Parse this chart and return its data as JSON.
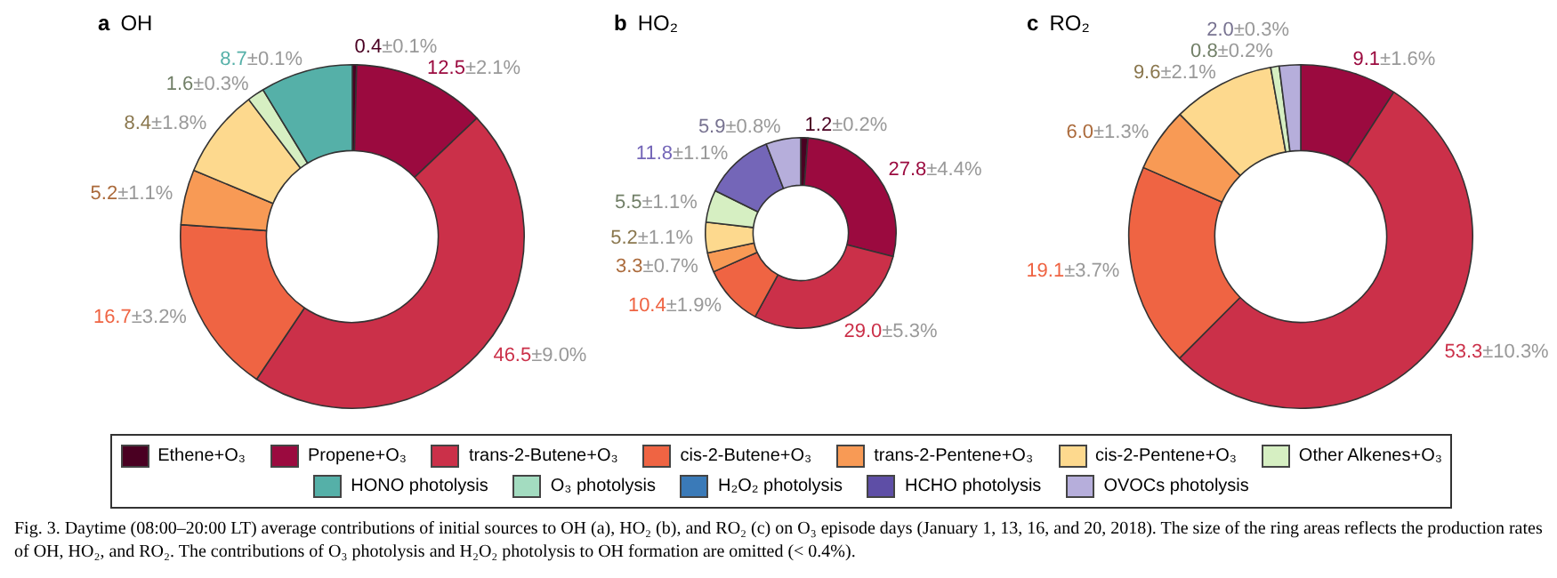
{
  "chart_data": [
    {
      "type": "donut",
      "title": "a OH",
      "legend": "bottom",
      "categories": [
        "Ethene+O₃",
        "Propene+O₃",
        "trans-2-Butene+O₃",
        "cis-2-Butene+O₃",
        "trans-2-Pentene+O₃",
        "cis-2-Pentene+O₃",
        "Other Alkenes+O₃",
        "HONO photolysis",
        "O₃ photolysis",
        "H₂O₂ photolysis",
        "HCHO photolysis",
        "OVOCs photolysis"
      ],
      "values": [
        0.4,
        12.5,
        46.5,
        16.7,
        5.2,
        8.4,
        1.6,
        8.7,
        null,
        null,
        null,
        null
      ],
      "value_labels": [
        "0.4±0.1%",
        "12.5±2.1%",
        "46.5±9.0%",
        "16.7±3.2%",
        "5.2±1.1%",
        "8.4±1.8%",
        "1.6±0.3%",
        "8.7±0.1%",
        null,
        null,
        null,
        null
      ],
      "colors": [
        "#4a0022",
        "#9b0a3f",
        "#cb3049",
        "#ef6443",
        "#f89a55",
        "#fdd98e",
        "#d6efc2",
        "#55b0a8",
        "#a3dcc0",
        "#3a7ab8",
        "#5e4ea6",
        "#b6aedb"
      ],
      "annotations": [
        "Fig. 3. Daytime (08:00–20:00 LT) average contributions of initial sources to OH (a), HO₂ (b), and RO₂ (c) on O₃ episode days (January 1, 13, 16, and 20, 2018). The size of the ring areas reflects the production rates of OH, HO₂, and RO₂. The contributions of O₃ photolysis and H₂O₂ photolysis to OH formation are omitted (< 0.4%)."
      ]
    },
    {
      "type": "donut",
      "title": "b HO₂",
      "categories": [
        null,
        null,
        null,
        null,
        null,
        null,
        null,
        null,
        null,
        null,
        null,
        null
      ],
      "values": [
        1.2,
        27.8,
        29.0,
        10.4,
        3.3,
        5.2,
        5.5,
        null,
        null,
        null,
        11.8,
        5.9
      ],
      "value_labels": [
        "1.2±0.2%",
        "27.8±4.4%",
        "29.0±5.3%",
        "10.4±1.9%",
        "3.3±0.7%",
        "5.2±1.1%",
        "5.5±1.1%",
        null,
        null,
        null,
        "11.8±1.1%",
        "5.9±0.8%"
      ],
      "colors": [
        "#4a0022",
        "#9b0a3f",
        "#cb3049",
        "#ef6443",
        "#f89a55",
        "#fdd98e",
        "#d6efc2",
        "#55b0a8",
        "#a3dcc0",
        "#3a7ab8",
        "#7466b8",
        "#b6aedb"
      ]
    },
    {
      "type": "donut",
      "title": "c RO₂",
      "categories": [
        null,
        null,
        null,
        null,
        null,
        null,
        null,
        null,
        null,
        null,
        null,
        null
      ],
      "values": [
        null,
        9.1,
        53.3,
        19.1,
        6.0,
        9.6,
        0.8,
        null,
        null,
        null,
        null,
        2.0
      ],
      "value_labels": [
        null,
        "9.1±1.6%",
        "53.3±10.3%",
        "19.1±3.7%",
        "6.0±1.3%",
        "9.6±2.1%",
        "0.8±0.2%",
        null,
        null,
        null,
        null,
        "2.0±0.3%"
      ],
      "colors": [
        "#4a0022",
        "#9b0a3f",
        "#cb3049",
        "#ef6443",
        "#f89a55",
        "#fdd98e",
        "#d6efc2",
        "#55b0a8",
        "#a3dcc0",
        "#3a7ab8",
        "#5e4ea6",
        "#b6aedb"
      ]
    }
  ]
}
